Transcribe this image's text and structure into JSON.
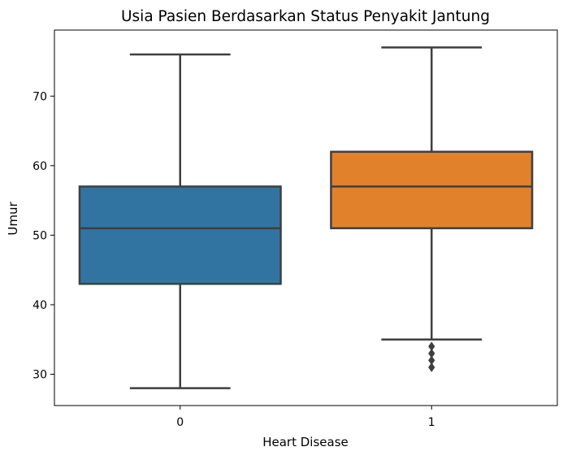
{
  "chart_data": {
    "type": "box",
    "title": "Usia Pasien Berdasarkan Status Penyakit Jantung",
    "xlabel": "Heart Disease",
    "ylabel": "Umur",
    "ylim": [
      25.5,
      79.5
    ],
    "yticks": [
      30,
      40,
      50,
      60,
      70
    ],
    "ytick_labels": [
      "30",
      "40",
      "50",
      "60",
      "70"
    ],
    "categories": [
      "0",
      "1"
    ],
    "grid": false,
    "legend": "none",
    "boxes": [
      {
        "category": "0",
        "color": "#3274a1",
        "whisker_low": 28,
        "q1": 43,
        "median": 51,
        "q3": 57,
        "whisker_high": 76,
        "outliers": []
      },
      {
        "category": "1",
        "color": "#e1812c",
        "whisker_low": 35,
        "q1": 51,
        "median": 57,
        "q3": 62,
        "whisker_high": 77,
        "outliers": [
          34,
          33,
          32,
          31
        ]
      }
    ]
  }
}
